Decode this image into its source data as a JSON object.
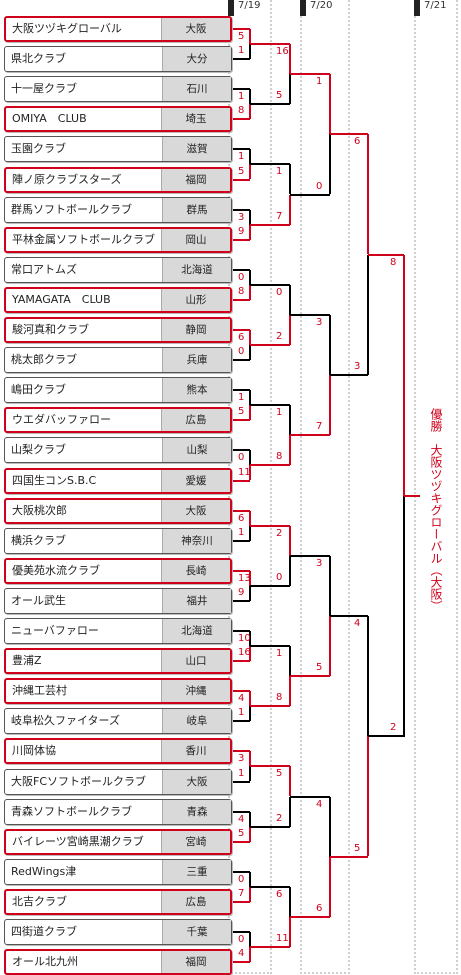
{
  "dates": [
    "7/19",
    "7/20",
    "7/21"
  ],
  "teams": [
    {
      "name": "大阪ツヅキグローバル",
      "pref": "大阪"
    },
    {
      "name": "県北クラブ",
      "pref": "大分"
    },
    {
      "name": "十一屋クラブ",
      "pref": "石川"
    },
    {
      "name": "OMIYA　CLUB",
      "pref": "埼玉"
    },
    {
      "name": "玉園クラブ",
      "pref": "滋賀"
    },
    {
      "name": "陣ノ原クラブスターズ",
      "pref": "福岡"
    },
    {
      "name": "群馬ソフトボールクラブ",
      "pref": "群馬"
    },
    {
      "name": "平林金属ソフトボールクラブ",
      "pref": "岡山"
    },
    {
      "name": "常口アトムズ",
      "pref": "北海道"
    },
    {
      "name": "YAMAGATA　CLUB",
      "pref": "山形"
    },
    {
      "name": "駿河真和クラブ",
      "pref": "静岡"
    },
    {
      "name": "桃太郎クラブ",
      "pref": "兵庫"
    },
    {
      "name": "嶋田クラブ",
      "pref": "熊本"
    },
    {
      "name": "ウエダバッファロー",
      "pref": "広島"
    },
    {
      "name": "山梨クラブ",
      "pref": "山梨"
    },
    {
      "name": "四国生コンS.B.C",
      "pref": "愛媛"
    },
    {
      "name": "大阪桃次郎",
      "pref": "大阪"
    },
    {
      "name": "横浜クラブ",
      "pref": "神奈川"
    },
    {
      "name": "優美苑水流クラブ",
      "pref": "長崎"
    },
    {
      "name": "オール武生",
      "pref": "福井"
    },
    {
      "name": "ニューバファロー",
      "pref": "北海道"
    },
    {
      "name": "豊浦Z",
      "pref": "山口"
    },
    {
      "name": "沖縄工芸村",
      "pref": "沖縄"
    },
    {
      "name": "岐阜松久ファイターズ",
      "pref": "岐阜"
    },
    {
      "name": "川岡体協",
      "pref": "香川"
    },
    {
      "name": "大阪FCソフトボールクラブ",
      "pref": "大阪"
    },
    {
      "name": "青森ソフトボールクラブ",
      "pref": "青森"
    },
    {
      "name": "バイレーツ宮崎黒潮クラブ",
      "pref": "宮崎"
    },
    {
      "name": "RedWings津",
      "pref": "三重"
    },
    {
      "name": "北吉クラブ",
      "pref": "広島"
    },
    {
      "name": "四街道クラブ",
      "pref": "千葉"
    },
    {
      "name": "オール北九州",
      "pref": "福岡"
    }
  ],
  "rounds": [
    [
      {
        "s1": "5",
        "s2": "1",
        "w": 0
      },
      {
        "s1": "1",
        "s2": "8",
        "w": 1
      },
      {
        "s1": "1",
        "s2": "5",
        "w": 1
      },
      {
        "s1": "3",
        "s2": "9",
        "w": 1
      },
      {
        "s1": "0",
        "s2": "8",
        "w": 1
      },
      {
        "s1": "6",
        "s2": "0",
        "w": 0
      },
      {
        "s1": "1",
        "s2": "5",
        "w": 1
      },
      {
        "s1": "0",
        "s2": "11",
        "w": 1
      },
      {
        "s1": "6",
        "s2": "1",
        "w": 0
      },
      {
        "s1": "13",
        "s2": "9",
        "w": 0
      },
      {
        "s1": "10",
        "s2": "16",
        "w": 1
      },
      {
        "s1": "4",
        "s2": "1",
        "w": 0
      },
      {
        "s1": "3",
        "s2": "1",
        "w": 0
      },
      {
        "s1": "4",
        "s2": "5",
        "w": 1
      },
      {
        "s1": "0",
        "s2": "7",
        "w": 1
      },
      {
        "s1": "0",
        "s2": "4",
        "w": 1
      }
    ],
    [
      {
        "s1": "16",
        "s2": "5",
        "w": 0
      },
      {
        "s1": "1",
        "s2": "7",
        "w": 1
      },
      {
        "s1": "0",
        "s2": "2",
        "w": 1
      },
      {
        "s1": "1",
        "s2": "8",
        "w": 1
      },
      {
        "s1": "2",
        "s2": "0",
        "w": 0
      },
      {
        "s1": "1",
        "s2": "8",
        "w": 1
      },
      {
        "s1": "5",
        "s2": "2",
        "w": 0
      },
      {
        "s1": "6",
        "s2": "11",
        "w": 1
      }
    ],
    [
      {
        "s1": "1",
        "s2": "0",
        "w": 0
      },
      {
        "s1": "3",
        "s2": "7",
        "w": 1
      },
      {
        "s1": "3",
        "s2": "5",
        "w": 1
      },
      {
        "s1": "4",
        "s2": "6",
        "w": 1
      }
    ],
    [
      {
        "s1": "6",
        "s2": "3",
        "w": 0
      },
      {
        "s1": "4",
        "s2": "5",
        "w": 1
      }
    ],
    [
      {
        "s1": "8",
        "s2": "2",
        "w": 0
      }
    ]
  ],
  "champion_text": "優勝　大阪ツヅキグローバル（大阪）"
}
